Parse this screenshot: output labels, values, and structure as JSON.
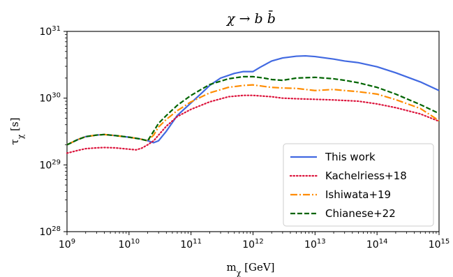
{
  "chart_data": {
    "type": "line",
    "title": "χ → b b̄",
    "xlabel": "m_χ [GeV]",
    "ylabel": "τ_χ [s]",
    "x_scale": "log",
    "y_scale": "log",
    "xlim": [
      1000000000.0,
      1000000000000000.0
    ],
    "ylim": [
      1e+28,
      1e+31
    ],
    "x_ticks": [
      {
        "base": "10",
        "exp": "9"
      },
      {
        "base": "10",
        "exp": "10"
      },
      {
        "base": "10",
        "exp": "11"
      },
      {
        "base": "10",
        "exp": "12"
      },
      {
        "base": "10",
        "exp": "13"
      },
      {
        "base": "10",
        "exp": "14"
      },
      {
        "base": "10",
        "exp": "15"
      }
    ],
    "y_ticks": [
      {
        "base": "10",
        "exp": "28"
      },
      {
        "base": "10",
        "exp": "29"
      },
      {
        "base": "10",
        "exp": "30"
      },
      {
        "base": "10",
        "exp": "31"
      }
    ],
    "grid": false,
    "legend_position": "lower-right",
    "series": [
      {
        "name": "This work",
        "color": "#4169E1",
        "style": "solid",
        "x": [
          1000000000.0,
          1500000000.0,
          2000000000.0,
          3000000000.0,
          4000000000.0,
          6000000000.0,
          10000000000.0,
          15000000000.0,
          20000000000.0,
          25000000000.0,
          30000000000.0,
          40000000000.0,
          60000000000.0,
          100000000000.0,
          150000000000.0,
          200000000000.0,
          300000000000.0,
          500000000000.0,
          700000000000.0,
          1000000000000.0,
          1300000000000.0,
          2000000000000.0,
          3000000000000.0,
          5000000000000.0,
          7000000000000.0,
          10000000000000.0,
          20000000000000.0,
          30000000000000.0,
          50000000000000.0,
          100000000000000.0,
          200000000000000.0,
          500000000000000.0,
          1000000000000000.0
        ],
        "y": [
          2e+29,
          2.4e+29,
          2.65e+29,
          2.8e+29,
          2.85e+29,
          2.75e+29,
          2.6e+29,
          2.45e+29,
          2.3e+29,
          2.15e+29,
          2.3e+29,
          3.2e+29,
          5.5e+29,
          8.5e+29,
          1.2e+30,
          1.55e+30,
          2e+30,
          2.35e+30,
          2.5e+30,
          2.5e+30,
          2.9e+30,
          3.6e+30,
          4e+30,
          4.25e+30,
          4.3e+30,
          4.2e+30,
          3.85e+30,
          3.6e+30,
          3.4e+30,
          2.95e+30,
          2.4e+30,
          1.75e+30,
          1.3e+30
        ]
      },
      {
        "name": "Kachelriess+18",
        "color": "#DC143C",
        "style": "dotted",
        "x": [
          1000000000.0,
          1500000000.0,
          2000000000.0,
          3000000000.0,
          4000000000.0,
          6000000000.0,
          10000000000.0,
          13000000000.0,
          16000000000.0,
          20000000000.0,
          25000000000.0,
          30000000000.0,
          40000000000.0,
          60000000000.0,
          100000000000.0,
          200000000000.0,
          400000000000.0,
          700000000000.0,
          1000000000000.0,
          2000000000000.0,
          3000000000000.0,
          5000000000000.0,
          10000000000000.0,
          20000000000000.0,
          50000000000000.0,
          100000000000000.0,
          200000000000000.0,
          500000000000000.0,
          1000000000000000.0
        ],
        "y": [
          1.5e+29,
          1.65e+29,
          1.75e+29,
          1.8e+29,
          1.82e+29,
          1.8e+29,
          1.72e+29,
          1.68e+29,
          1.78e+29,
          2e+29,
          2.3e+29,
          2.8e+29,
          3.8e+29,
          5.3e+29,
          6.8e+29,
          8.8e+29,
          1.05e+30,
          1.1e+30,
          1.1e+30,
          1.05e+30,
          1e+30,
          9.8e+29,
          9.6e+29,
          9.4e+29,
          9e+29,
          8.2e+29,
          7.2e+29,
          5.8e+29,
          4.5e+29
        ]
      },
      {
        "name": "Ishiwata+19",
        "color": "#FF8C00",
        "style": "dashdot",
        "x": [
          1000000000.0,
          1500000000.0,
          2000000000.0,
          3000000000.0,
          4000000000.0,
          6000000000.0,
          10000000000.0,
          15000000000.0,
          20000000000.0,
          25000000000.0,
          30000000000.0,
          40000000000.0,
          60000000000.0,
          100000000000.0,
          200000000000.0,
          400000000000.0,
          700000000000.0,
          1000000000000.0,
          1500000000000.0,
          2000000000000.0,
          3000000000000.0,
          5000000000000.0,
          10000000000000.0,
          20000000000000.0,
          30000000000000.0,
          50000000000000.0,
          100000000000000.0,
          200000000000000.0,
          500000000000000.0,
          1000000000000000.0
        ],
        "y": [
          2e+29,
          2.4e+29,
          2.65e+29,
          2.8e+29,
          2.85e+29,
          2.75e+29,
          2.6e+29,
          2.45e+29,
          2.3e+29,
          2.8e+29,
          3.7e+29,
          4.8e+29,
          6.5e+29,
          8.8e+29,
          1.2e+30,
          1.45e+30,
          1.55e+30,
          1.58e+30,
          1.5e+30,
          1.45e+30,
          1.42e+30,
          1.4e+30,
          1.3e+30,
          1.35e+30,
          1.3e+30,
          1.25e+30,
          1.15e+30,
          9.5e+29,
          7e+29,
          4.6e+29
        ]
      },
      {
        "name": "Chianese+22",
        "color": "#006400",
        "style": "dashed",
        "x": [
          1000000000.0,
          1500000000.0,
          2000000000.0,
          3000000000.0,
          4000000000.0,
          6000000000.0,
          10000000000.0,
          15000000000.0,
          20000000000.0,
          25000000000.0,
          30000000000.0,
          40000000000.0,
          60000000000.0,
          100000000000.0,
          200000000000.0,
          400000000000.0,
          700000000000.0,
          1000000000000.0,
          1500000000000.0,
          2000000000000.0,
          3000000000000.0,
          5000000000000.0,
          10000000000000.0,
          20000000000000.0,
          30000000000000.0,
          50000000000000.0,
          100000000000000.0,
          200000000000000.0,
          500000000000000.0,
          1000000000000000.0
        ],
        "y": [
          2e+29,
          2.4e+29,
          2.65e+29,
          2.8e+29,
          2.85e+29,
          2.75e+29,
          2.6e+29,
          2.45e+29,
          2.3e+29,
          3.2e+29,
          4.2e+29,
          5.5e+29,
          7.8e+29,
          1.1e+30,
          1.6e+30,
          1.95e+30,
          2.1e+30,
          2.1e+30,
          2e+30,
          1.9e+30,
          1.85e+30,
          2e+30,
          2.05e+30,
          1.95e+30,
          1.85e+30,
          1.7e+30,
          1.45e+30,
          1.15e+30,
          8e+29,
          5.9e+29
        ]
      }
    ]
  }
}
